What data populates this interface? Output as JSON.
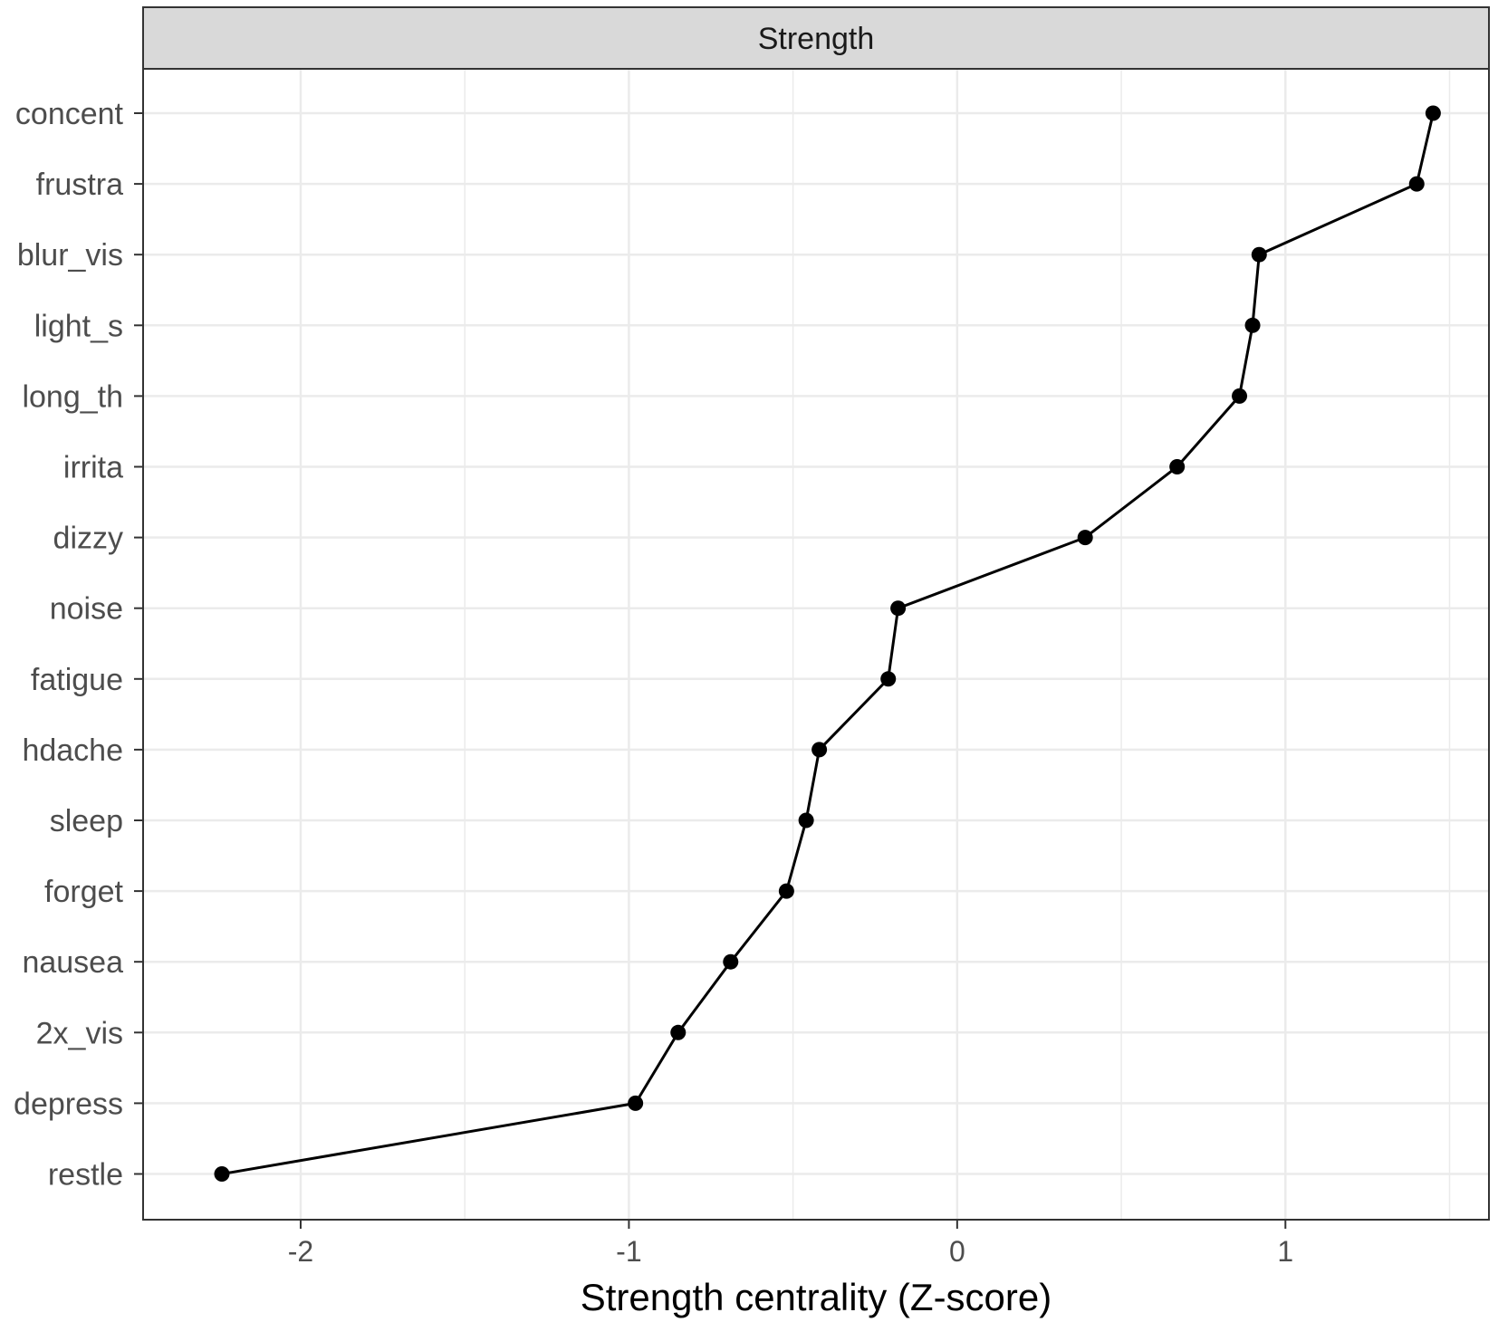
{
  "chart_data": {
    "type": "line",
    "facet_label": "Strength",
    "xlabel": "Strength centrality (Z-score)",
    "ylabel": "",
    "xlim": [
      -2.48,
      1.62
    ],
    "x_ticks": [
      -2,
      -1,
      0,
      1
    ],
    "x_tick_labels": [
      "-2",
      "-1",
      "0",
      "1"
    ],
    "x_minor_ticks": [
      -1.5,
      -0.5,
      0.5,
      1.5
    ],
    "grid": true,
    "categories": [
      "concent",
      "frustra",
      "blur_vis",
      "light_s",
      "long_th",
      "irrita",
      "dizzy",
      "noise",
      "fatigue",
      "hdache",
      "sleep",
      "forget",
      "nausea",
      "2x_vis",
      "depress",
      "restle"
    ],
    "values": [
      1.45,
      1.4,
      0.92,
      0.9,
      0.86,
      0.67,
      0.39,
      -0.18,
      -0.21,
      -0.42,
      -0.46,
      -0.52,
      -0.69,
      -0.85,
      -0.98,
      -2.24
    ],
    "colors": {
      "line": "#000000",
      "point": "#000000",
      "strip": "#d9d9d9",
      "grid": "#ebebeb",
      "border": "#333333"
    }
  }
}
